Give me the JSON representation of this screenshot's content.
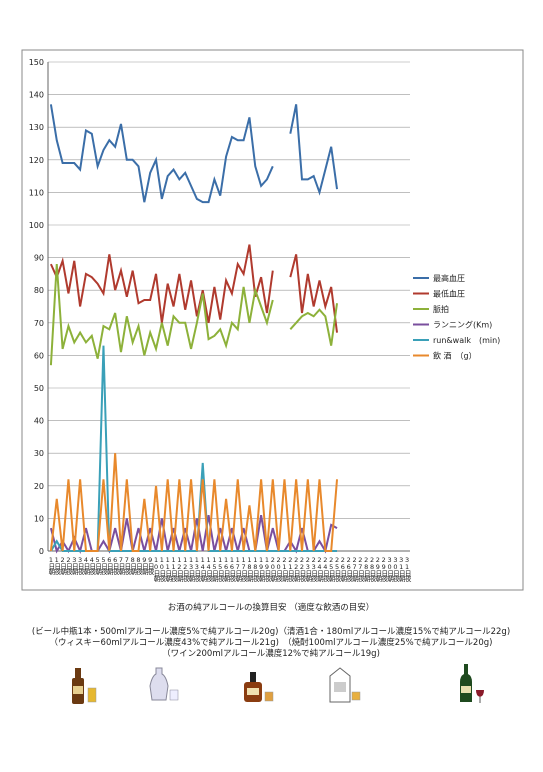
{
  "chart_data": {
    "type": "line",
    "categories": [
      "1日朝",
      "1日夜",
      "2日朝",
      "2日夜",
      "3日朝",
      "3日夜",
      "4日朝",
      "4日夜",
      "5日朝",
      "5日夜",
      "6日朝",
      "6日夜",
      "7日朝",
      "7日夜",
      "8日朝",
      "8日夜",
      "9日朝",
      "9日夜",
      "10日朝",
      "10日夜",
      "11日朝",
      "11日夜",
      "12日朝",
      "12日夜",
      "13日朝",
      "13日夜",
      "14日朝",
      "14日夜",
      "15日朝",
      "15日夜",
      "16日朝",
      "16日夜",
      "17日朝",
      "17日夜",
      "18日朝",
      "18日夜",
      "19日朝",
      "19日夜",
      "20日朝",
      "20日夜",
      "21日朝",
      "21日夜",
      "22日朝",
      "22日夜",
      "23日朝",
      "23日夜",
      "24日朝",
      "24日夜",
      "25日朝",
      "25日夜",
      "26日朝",
      "26日夜",
      "27日朝",
      "27日夜",
      "28日朝",
      "28日夜",
      "29日朝",
      "29日夜",
      "30日朝",
      "30日夜",
      "31日朝",
      "31日夜"
    ],
    "series": [
      {
        "name": "最高血圧",
        "color": "#3b6ea8",
        "values": [
          137,
          126,
          119,
          119,
          119,
          117,
          129,
          128,
          118,
          123,
          126,
          124,
          131,
          120,
          120,
          118,
          107,
          116,
          120,
          108,
          115,
          117,
          114,
          116,
          112,
          108,
          107,
          107,
          114,
          109,
          121,
          127,
          126,
          126,
          133,
          118,
          112,
          114,
          118,
          null,
          null,
          128,
          137,
          114,
          114,
          115,
          110,
          117,
          124,
          111,
          null,
          null,
          null,
          null,
          null,
          null,
          null,
          null,
          null,
          null,
          null,
          null
        ]
      },
      {
        "name": "最低血圧",
        "color": "#b03a2e",
        "values": [
          88,
          84,
          89,
          79,
          89,
          75,
          85,
          84,
          82,
          79,
          91,
          80,
          86,
          78,
          86,
          76,
          77,
          77,
          85,
          70,
          82,
          75,
          85,
          74,
          83,
          72,
          80,
          70,
          81,
          71,
          83,
          79,
          88,
          85,
          94,
          78,
          84,
          73,
          86,
          null,
          null,
          84,
          91,
          73,
          85,
          75,
          83,
          75,
          81,
          67,
          null,
          null,
          null,
          null,
          null,
          null,
          null,
          null,
          null,
          null,
          null,
          null
        ]
      },
      {
        "name": "脈拍",
        "color": "#8db13a",
        "values": [
          57,
          88,
          62,
          69,
          64,
          67,
          64,
          66,
          59,
          69,
          68,
          73,
          61,
          72,
          64,
          69,
          60,
          67,
          62,
          70,
          63,
          72,
          70,
          70,
          62,
          70,
          79,
          65,
          66,
          68,
          63,
          70,
          68,
          81,
          70,
          80,
          75,
          70,
          77,
          null,
          null,
          68,
          70,
          72,
          73,
          72,
          74,
          72,
          63,
          76,
          null,
          null,
          null,
          null,
          null,
          null,
          null,
          null,
          null,
          null,
          null,
          null
        ]
      },
      {
        "name": "ランニング(Km)",
        "color": "#7a4f9e",
        "values": [
          7,
          0,
          3,
          0,
          4,
          0,
          7,
          0,
          0,
          3,
          0,
          7,
          0,
          10,
          0,
          7,
          0,
          7,
          0,
          10,
          0,
          7,
          0,
          7,
          0,
          10,
          0,
          11,
          0,
          7,
          0,
          7,
          0,
          7,
          0,
          0,
          11,
          0,
          7,
          0,
          0,
          3,
          0,
          7,
          0,
          0,
          3,
          0,
          8,
          7,
          null,
          null,
          null,
          null,
          null,
          null,
          null,
          null,
          null,
          null,
          null,
          null
        ]
      },
      {
        "name": "run&walk　(min)",
        "color": "#3aa0b8",
        "values": [
          0,
          3,
          0,
          0,
          0,
          0,
          0,
          0,
          0,
          63,
          0,
          0,
          0,
          0,
          0,
          0,
          0,
          0,
          0,
          0,
          0,
          0,
          0,
          0,
          0,
          0,
          27,
          0,
          0,
          0,
          0,
          0,
          0,
          0,
          0,
          0,
          0,
          0,
          0,
          0,
          0,
          0,
          0,
          0,
          0,
          0,
          0,
          0,
          0,
          0,
          null,
          null,
          null,
          null,
          null,
          null,
          null,
          null,
          null,
          null,
          null,
          null
        ]
      },
      {
        "name": "飲 酒　（g）",
        "color": "#e8892c",
        "values": [
          0,
          16,
          0,
          22,
          0,
          22,
          0,
          0,
          0,
          22,
          0,
          30,
          0,
          22,
          0,
          0,
          16,
          0,
          20,
          0,
          22,
          0,
          22,
          0,
          22,
          0,
          22,
          0,
          22,
          0,
          16,
          0,
          22,
          0,
          14,
          0,
          22,
          0,
          22,
          0,
          22,
          0,
          22,
          0,
          22,
          0,
          22,
          0,
          0,
          22,
          null,
          null,
          null,
          null,
          null,
          null,
          null,
          null,
          null,
          null,
          null,
          null
        ]
      }
    ],
    "ylim": [
      0,
      150
    ],
    "yticks": [
      0,
      10,
      20,
      30,
      40,
      50,
      60,
      70,
      80,
      90,
      100,
      110,
      120,
      130,
      140,
      150
    ],
    "grid": true,
    "legend": "right"
  },
  "notes": {
    "title": "お酒の純アルコールの換算目安 （適度な飲酒の目安）",
    "lines": [
      "(ビール中瓶1本・500mlアルコール濃度5%で純アルコール20g)（清酒1合・180mlアルコール濃度15%で純アルコール22g)",
      "（ウィスキー60mlアルコール濃度43%で純アルコール21g)　（焼酎100mlアルコール濃度25%で純アルコール20g)",
      "（ワイン200mlアルコール濃度12%で純アルコール19g)"
    ]
  }
}
